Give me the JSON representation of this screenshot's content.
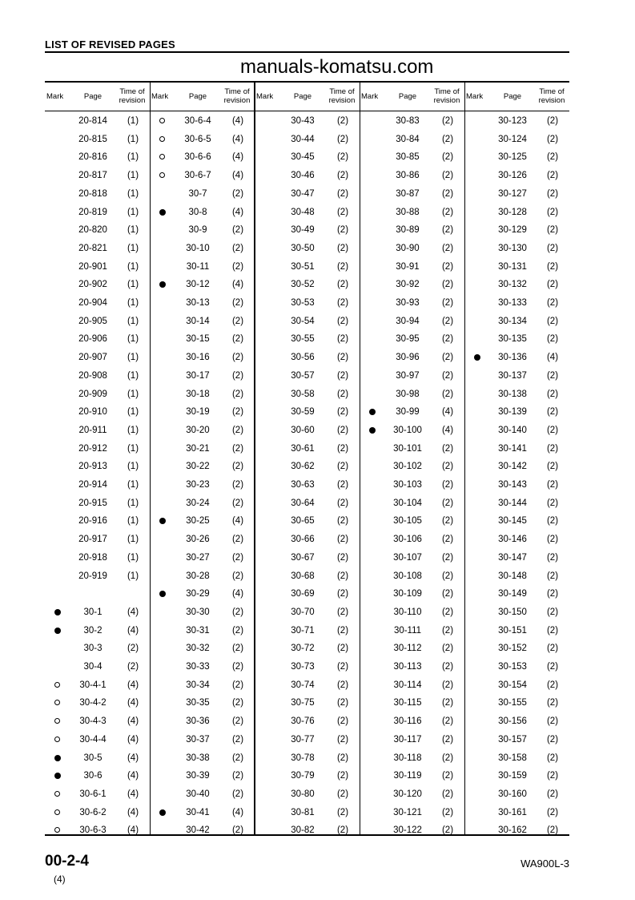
{
  "title": "LIST OF REVISED PAGES",
  "headers": {
    "mark": "Mark",
    "page": "Page",
    "time": "Time of",
    "revision": "revision"
  },
  "watermark": "manuals-komatsu.com",
  "mark_symbols": {
    "filled": "●",
    "open": "○"
  },
  "columns": [
    [
      [
        "",
        "20-814",
        "(1)"
      ],
      [
        "",
        "20-815",
        "(1)"
      ],
      [
        "",
        "20-816",
        "(1)"
      ],
      [
        "",
        "20-817",
        "(1)"
      ],
      [
        "",
        "20-818",
        "(1)"
      ],
      [
        "",
        "20-819",
        "(1)"
      ],
      [
        "",
        "20-820",
        "(1)"
      ],
      [
        "",
        "20-821",
        "(1)"
      ],
      [
        "",
        "20-901",
        "(1)"
      ],
      [
        "",
        "20-902",
        "(1)"
      ],
      [
        "",
        "20-904",
        "(1)"
      ],
      [
        "",
        "20-905",
        "(1)"
      ],
      [
        "",
        "20-906",
        "(1)"
      ],
      [
        "",
        "20-907",
        "(1)"
      ],
      [
        "",
        "20-908",
        "(1)"
      ],
      [
        "",
        "20-909",
        "(1)"
      ],
      [
        "",
        "20-910",
        "(1)"
      ],
      [
        "",
        "20-911",
        "(1)"
      ],
      [
        "",
        "20-912",
        "(1)"
      ],
      [
        "",
        "20-913",
        "(1)"
      ],
      [
        "",
        "20-914",
        "(1)"
      ],
      [
        "",
        "20-915",
        "(1)"
      ],
      [
        "",
        "20-916",
        "(1)"
      ],
      [
        "",
        "20-917",
        "(1)"
      ],
      [
        "",
        "20-918",
        "(1)"
      ],
      [
        "",
        "20-919",
        "(1)"
      ],
      [
        "",
        "",
        ""
      ],
      [
        "filled",
        "30-1",
        "(4)"
      ],
      [
        "filled",
        "30-2",
        "(4)"
      ],
      [
        "",
        "30-3",
        "(2)"
      ],
      [
        "",
        "30-4",
        "(2)"
      ],
      [
        "open",
        "30-4-1",
        "(4)"
      ],
      [
        "open",
        "30-4-2",
        "(4)"
      ],
      [
        "open",
        "30-4-3",
        "(4)"
      ],
      [
        "open",
        "30-4-4",
        "(4)"
      ],
      [
        "filled",
        "30-5",
        "(4)"
      ],
      [
        "filled",
        "30-6",
        "(4)"
      ],
      [
        "open",
        "30-6-1",
        "(4)"
      ],
      [
        "open",
        "30-6-2",
        "(4)"
      ],
      [
        "open",
        "30-6-3",
        "(4)"
      ]
    ],
    [
      [
        "open",
        "30-6-4",
        "(4)"
      ],
      [
        "open",
        "30-6-5",
        "(4)"
      ],
      [
        "open",
        "30-6-6",
        "(4)"
      ],
      [
        "open",
        "30-6-7",
        "(4)"
      ],
      [
        "",
        "30-7",
        "(2)"
      ],
      [
        "filled",
        "30-8",
        "(4)"
      ],
      [
        "",
        "30-9",
        "(2)"
      ],
      [
        "",
        "30-10",
        "(2)"
      ],
      [
        "",
        "30-11",
        "(2)"
      ],
      [
        "filled",
        "30-12",
        "(4)"
      ],
      [
        "",
        "30-13",
        "(2)"
      ],
      [
        "",
        "30-14",
        "(2)"
      ],
      [
        "",
        "30-15",
        "(2)"
      ],
      [
        "",
        "30-16",
        "(2)"
      ],
      [
        "",
        "30-17",
        "(2)"
      ],
      [
        "",
        "30-18",
        "(2)"
      ],
      [
        "",
        "30-19",
        "(2)"
      ],
      [
        "",
        "30-20",
        "(2)"
      ],
      [
        "",
        "30-21",
        "(2)"
      ],
      [
        "",
        "30-22",
        "(2)"
      ],
      [
        "",
        "30-23",
        "(2)"
      ],
      [
        "",
        "30-24",
        "(2)"
      ],
      [
        "filled",
        "30-25",
        "(4)"
      ],
      [
        "",
        "30-26",
        "(2)"
      ],
      [
        "",
        "30-27",
        "(2)"
      ],
      [
        "",
        "30-28",
        "(2)"
      ],
      [
        "filled",
        "30-29",
        "(4)"
      ],
      [
        "",
        "30-30",
        "(2)"
      ],
      [
        "",
        "30-31",
        "(2)"
      ],
      [
        "",
        "30-32",
        "(2)"
      ],
      [
        "",
        "30-33",
        "(2)"
      ],
      [
        "",
        "30-34",
        "(2)"
      ],
      [
        "",
        "30-35",
        "(2)"
      ],
      [
        "",
        "30-36",
        "(2)"
      ],
      [
        "",
        "30-37",
        "(2)"
      ],
      [
        "",
        "30-38",
        "(2)"
      ],
      [
        "",
        "30-39",
        "(2)"
      ],
      [
        "",
        "30-40",
        "(2)"
      ],
      [
        "filled",
        "30-41",
        "(4)"
      ],
      [
        "",
        "30-42",
        "(2)"
      ]
    ],
    [
      [
        "",
        "30-43",
        "(2)"
      ],
      [
        "",
        "30-44",
        "(2)"
      ],
      [
        "",
        "30-45",
        "(2)"
      ],
      [
        "",
        "30-46",
        "(2)"
      ],
      [
        "",
        "30-47",
        "(2)"
      ],
      [
        "",
        "30-48",
        "(2)"
      ],
      [
        "",
        "30-49",
        "(2)"
      ],
      [
        "",
        "30-50",
        "(2)"
      ],
      [
        "",
        "30-51",
        "(2)"
      ],
      [
        "",
        "30-52",
        "(2)"
      ],
      [
        "",
        "30-53",
        "(2)"
      ],
      [
        "",
        "30-54",
        "(2)"
      ],
      [
        "",
        "30-55",
        "(2)"
      ],
      [
        "",
        "30-56",
        "(2)"
      ],
      [
        "",
        "30-57",
        "(2)"
      ],
      [
        "",
        "30-58",
        "(2)"
      ],
      [
        "",
        "30-59",
        "(2)"
      ],
      [
        "",
        "30-60",
        "(2)"
      ],
      [
        "",
        "30-61",
        "(2)"
      ],
      [
        "",
        "30-62",
        "(2)"
      ],
      [
        "",
        "30-63",
        "(2)"
      ],
      [
        "",
        "30-64",
        "(2)"
      ],
      [
        "",
        "30-65",
        "(2)"
      ],
      [
        "",
        "30-66",
        "(2)"
      ],
      [
        "",
        "30-67",
        "(2)"
      ],
      [
        "",
        "30-68",
        "(2)"
      ],
      [
        "",
        "30-69",
        "(2)"
      ],
      [
        "",
        "30-70",
        "(2)"
      ],
      [
        "",
        "30-71",
        "(2)"
      ],
      [
        "",
        "30-72",
        "(2)"
      ],
      [
        "",
        "30-73",
        "(2)"
      ],
      [
        "",
        "30-74",
        "(2)"
      ],
      [
        "",
        "30-75",
        "(2)"
      ],
      [
        "",
        "30-76",
        "(2)"
      ],
      [
        "",
        "30-77",
        "(2)"
      ],
      [
        "",
        "30-78",
        "(2)"
      ],
      [
        "",
        "30-79",
        "(2)"
      ],
      [
        "",
        "30-80",
        "(2)"
      ],
      [
        "",
        "30-81",
        "(2)"
      ],
      [
        "",
        "30-82",
        "(2)"
      ]
    ],
    [
      [
        "",
        "30-83",
        "(2)"
      ],
      [
        "",
        "30-84",
        "(2)"
      ],
      [
        "",
        "30-85",
        "(2)"
      ],
      [
        "",
        "30-86",
        "(2)"
      ],
      [
        "",
        "30-87",
        "(2)"
      ],
      [
        "",
        "30-88",
        "(2)"
      ],
      [
        "",
        "30-89",
        "(2)"
      ],
      [
        "",
        "30-90",
        "(2)"
      ],
      [
        "",
        "30-91",
        "(2)"
      ],
      [
        "",
        "30-92",
        "(2)"
      ],
      [
        "",
        "30-93",
        "(2)"
      ],
      [
        "",
        "30-94",
        "(2)"
      ],
      [
        "",
        "30-95",
        "(2)"
      ],
      [
        "",
        "30-96",
        "(2)"
      ],
      [
        "",
        "30-97",
        "(2)"
      ],
      [
        "",
        "30-98",
        "(2)"
      ],
      [
        "filled",
        "30-99",
        "(4)"
      ],
      [
        "filled",
        "30-100",
        "(4)"
      ],
      [
        "",
        "30-101",
        "(2)"
      ],
      [
        "",
        "30-102",
        "(2)"
      ],
      [
        "",
        "30-103",
        "(2)"
      ],
      [
        "",
        "30-104",
        "(2)"
      ],
      [
        "",
        "30-105",
        "(2)"
      ],
      [
        "",
        "30-106",
        "(2)"
      ],
      [
        "",
        "30-107",
        "(2)"
      ],
      [
        "",
        "30-108",
        "(2)"
      ],
      [
        "",
        "30-109",
        "(2)"
      ],
      [
        "",
        "30-110",
        "(2)"
      ],
      [
        "",
        "30-111",
        "(2)"
      ],
      [
        "",
        "30-112",
        "(2)"
      ],
      [
        "",
        "30-113",
        "(2)"
      ],
      [
        "",
        "30-114",
        "(2)"
      ],
      [
        "",
        "30-115",
        "(2)"
      ],
      [
        "",
        "30-116",
        "(2)"
      ],
      [
        "",
        "30-117",
        "(2)"
      ],
      [
        "",
        "30-118",
        "(2)"
      ],
      [
        "",
        "30-119",
        "(2)"
      ],
      [
        "",
        "30-120",
        "(2)"
      ],
      [
        "",
        "30-121",
        "(2)"
      ],
      [
        "",
        "30-122",
        "(2)"
      ]
    ],
    [
      [
        "",
        "30-123",
        "(2)"
      ],
      [
        "",
        "30-124",
        "(2)"
      ],
      [
        "",
        "30-125",
        "(2)"
      ],
      [
        "",
        "30-126",
        "(2)"
      ],
      [
        "",
        "30-127",
        "(2)"
      ],
      [
        "",
        "30-128",
        "(2)"
      ],
      [
        "",
        "30-129",
        "(2)"
      ],
      [
        "",
        "30-130",
        "(2)"
      ],
      [
        "",
        "30-131",
        "(2)"
      ],
      [
        "",
        "30-132",
        "(2)"
      ],
      [
        "",
        "30-133",
        "(2)"
      ],
      [
        "",
        "30-134",
        "(2)"
      ],
      [
        "",
        "30-135",
        "(2)"
      ],
      [
        "filled",
        "30-136",
        "(4)"
      ],
      [
        "",
        "30-137",
        "(2)"
      ],
      [
        "",
        "30-138",
        "(2)"
      ],
      [
        "",
        "30-139",
        "(2)"
      ],
      [
        "",
        "30-140",
        "(2)"
      ],
      [
        "",
        "30-141",
        "(2)"
      ],
      [
        "",
        "30-142",
        "(2)"
      ],
      [
        "",
        "30-143",
        "(2)"
      ],
      [
        "",
        "30-144",
        "(2)"
      ],
      [
        "",
        "30-145",
        "(2)"
      ],
      [
        "",
        "30-146",
        "(2)"
      ],
      [
        "",
        "30-147",
        "(2)"
      ],
      [
        "",
        "30-148",
        "(2)"
      ],
      [
        "",
        "30-149",
        "(2)"
      ],
      [
        "",
        "30-150",
        "(2)"
      ],
      [
        "",
        "30-151",
        "(2)"
      ],
      [
        "",
        "30-152",
        "(2)"
      ],
      [
        "",
        "30-153",
        "(2)"
      ],
      [
        "",
        "30-154",
        "(2)"
      ],
      [
        "",
        "30-155",
        "(2)"
      ],
      [
        "",
        "30-156",
        "(2)"
      ],
      [
        "",
        "30-157",
        "(2)"
      ],
      [
        "",
        "30-158",
        "(2)"
      ],
      [
        "",
        "30-159",
        "(2)"
      ],
      [
        "",
        "30-160",
        "(2)"
      ],
      [
        "",
        "30-161",
        "(2)"
      ],
      [
        "",
        "30-162",
        "(2)"
      ]
    ]
  ],
  "footer": {
    "page_number": "00-2-4",
    "revision": "(4)",
    "model": "WA900L-3"
  }
}
